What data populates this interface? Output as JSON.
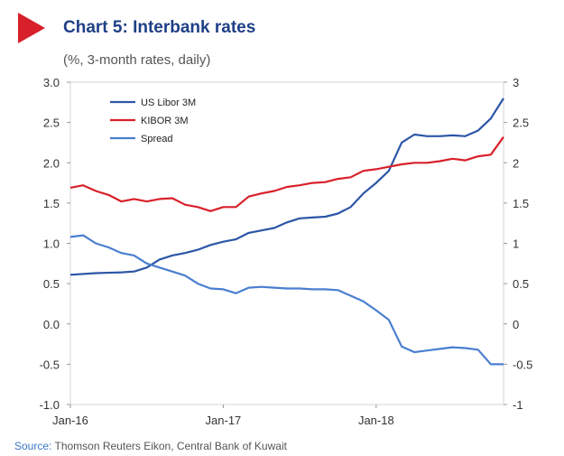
{
  "header": {
    "marker_color": "#d8202a",
    "title": "Chart 5: Interbank rates",
    "subtitle": "(%, 3-month rates, daily)"
  },
  "source": {
    "label": "Source:",
    "text": "Thomson Reuters Eikon, Central Bank of Kuwait"
  },
  "chart_data": {
    "type": "line",
    "title": "Chart 5: Interbank rates",
    "subtitle": "(%, 3-month rates, daily)",
    "xlabel": "",
    "ylabel": "",
    "x_range": [
      "2016-01",
      "2018-11"
    ],
    "ylim": [
      -1.0,
      3.0
    ],
    "y_ticks_left": [
      "3.0",
      "2.5",
      "2.0",
      "1.5",
      "1.0",
      "0.5",
      "0.0",
      "-0.5",
      "-1.0"
    ],
    "y_ticks_right": [
      "3",
      "2.5",
      "2",
      "1.5",
      "1",
      "0.5",
      "0",
      "-0.5",
      "-1"
    ],
    "x_ticks": [
      {
        "x": "2016-01",
        "label": "Jan-16"
      },
      {
        "x": "2017-01",
        "label": "Jan-17"
      },
      {
        "x": "2018-01",
        "label": "Jan-18"
      }
    ],
    "grid": false,
    "legend_position": "top-left",
    "series": [
      {
        "name": "US Libor 3M",
        "color": "#2c56a6",
        "points": [
          [
            "2016-01",
            0.61
          ],
          [
            "2016-03",
            0.63
          ],
          [
            "2016-05",
            0.64
          ],
          [
            "2016-06",
            0.65
          ],
          [
            "2016-07",
            0.7
          ],
          [
            "2016-08",
            0.8
          ],
          [
            "2016-09",
            0.85
          ],
          [
            "2016-10",
            0.88
          ],
          [
            "2016-11",
            0.92
          ],
          [
            "2016-12",
            0.98
          ],
          [
            "2017-01",
            1.02
          ],
          [
            "2017-02",
            1.05
          ],
          [
            "2017-03",
            1.13
          ],
          [
            "2017-04",
            1.16
          ],
          [
            "2017-05",
            1.19
          ],
          [
            "2017-06",
            1.26
          ],
          [
            "2017-07",
            1.31
          ],
          [
            "2017-08",
            1.32
          ],
          [
            "2017-09",
            1.33
          ],
          [
            "2017-10",
            1.37
          ],
          [
            "2017-11",
            1.45
          ],
          [
            "2017-12",
            1.62
          ],
          [
            "2018-01",
            1.75
          ],
          [
            "2018-02",
            1.9
          ],
          [
            "2018-03",
            2.25
          ],
          [
            "2018-04",
            2.35
          ],
          [
            "2018-05",
            2.33
          ],
          [
            "2018-06",
            2.33
          ],
          [
            "2018-07",
            2.34
          ],
          [
            "2018-08",
            2.33
          ],
          [
            "2018-09",
            2.4
          ],
          [
            "2018-10",
            2.55
          ],
          [
            "2018-11",
            2.8
          ]
        ]
      },
      {
        "name": "KIBOR 3M",
        "color": "#d8202a",
        "points": [
          [
            "2016-01",
            1.69
          ],
          [
            "2016-02",
            1.72
          ],
          [
            "2016-03",
            1.65
          ],
          [
            "2016-04",
            1.6
          ],
          [
            "2016-05",
            1.52
          ],
          [
            "2016-06",
            1.55
          ],
          [
            "2016-07",
            1.52
          ],
          [
            "2016-08",
            1.55
          ],
          [
            "2016-09",
            1.56
          ],
          [
            "2016-10",
            1.48
          ],
          [
            "2016-11",
            1.45
          ],
          [
            "2016-12",
            1.4
          ],
          [
            "2017-01",
            1.45
          ],
          [
            "2017-02",
            1.45
          ],
          [
            "2017-03",
            1.58
          ],
          [
            "2017-04",
            1.62
          ],
          [
            "2017-05",
            1.65
          ],
          [
            "2017-06",
            1.7
          ],
          [
            "2017-07",
            1.72
          ],
          [
            "2017-08",
            1.75
          ],
          [
            "2017-09",
            1.76
          ],
          [
            "2017-10",
            1.8
          ],
          [
            "2017-11",
            1.82
          ],
          [
            "2017-12",
            1.9
          ],
          [
            "2018-01",
            1.92
          ],
          [
            "2018-02",
            1.95
          ],
          [
            "2018-03",
            1.98
          ],
          [
            "2018-04",
            2.0
          ],
          [
            "2018-05",
            2.0
          ],
          [
            "2018-06",
            2.02
          ],
          [
            "2018-07",
            2.05
          ],
          [
            "2018-08",
            2.03
          ],
          [
            "2018-09",
            2.08
          ],
          [
            "2018-10",
            2.1
          ],
          [
            "2018-11",
            2.32
          ]
        ]
      },
      {
        "name": "Spread",
        "color": "#4a7fd0",
        "points": [
          [
            "2016-01",
            1.08
          ],
          [
            "2016-02",
            1.1
          ],
          [
            "2016-03",
            1.0
          ],
          [
            "2016-04",
            0.95
          ],
          [
            "2016-05",
            0.88
          ],
          [
            "2016-06",
            0.85
          ],
          [
            "2016-07",
            0.75
          ],
          [
            "2016-08",
            0.7
          ],
          [
            "2016-09",
            0.65
          ],
          [
            "2016-10",
            0.6
          ],
          [
            "2016-11",
            0.5
          ],
          [
            "2016-12",
            0.44
          ],
          [
            "2017-01",
            0.43
          ],
          [
            "2017-02",
            0.38
          ],
          [
            "2017-03",
            0.45
          ],
          [
            "2017-04",
            0.46
          ],
          [
            "2017-05",
            0.45
          ],
          [
            "2017-06",
            0.44
          ],
          [
            "2017-07",
            0.44
          ],
          [
            "2017-08",
            0.43
          ],
          [
            "2017-09",
            0.43
          ],
          [
            "2017-10",
            0.42
          ],
          [
            "2017-11",
            0.35
          ],
          [
            "2017-12",
            0.28
          ],
          [
            "2018-01",
            0.17
          ],
          [
            "2018-02",
            0.05
          ],
          [
            "2018-03",
            -0.28
          ],
          [
            "2018-04",
            -0.35
          ],
          [
            "2018-05",
            -0.33
          ],
          [
            "2018-06",
            -0.31
          ],
          [
            "2018-07",
            -0.29
          ],
          [
            "2018-08",
            -0.3
          ],
          [
            "2018-09",
            -0.32
          ],
          [
            "2018-10",
            -0.5
          ],
          [
            "2018-11",
            -0.5
          ]
        ]
      }
    ]
  }
}
